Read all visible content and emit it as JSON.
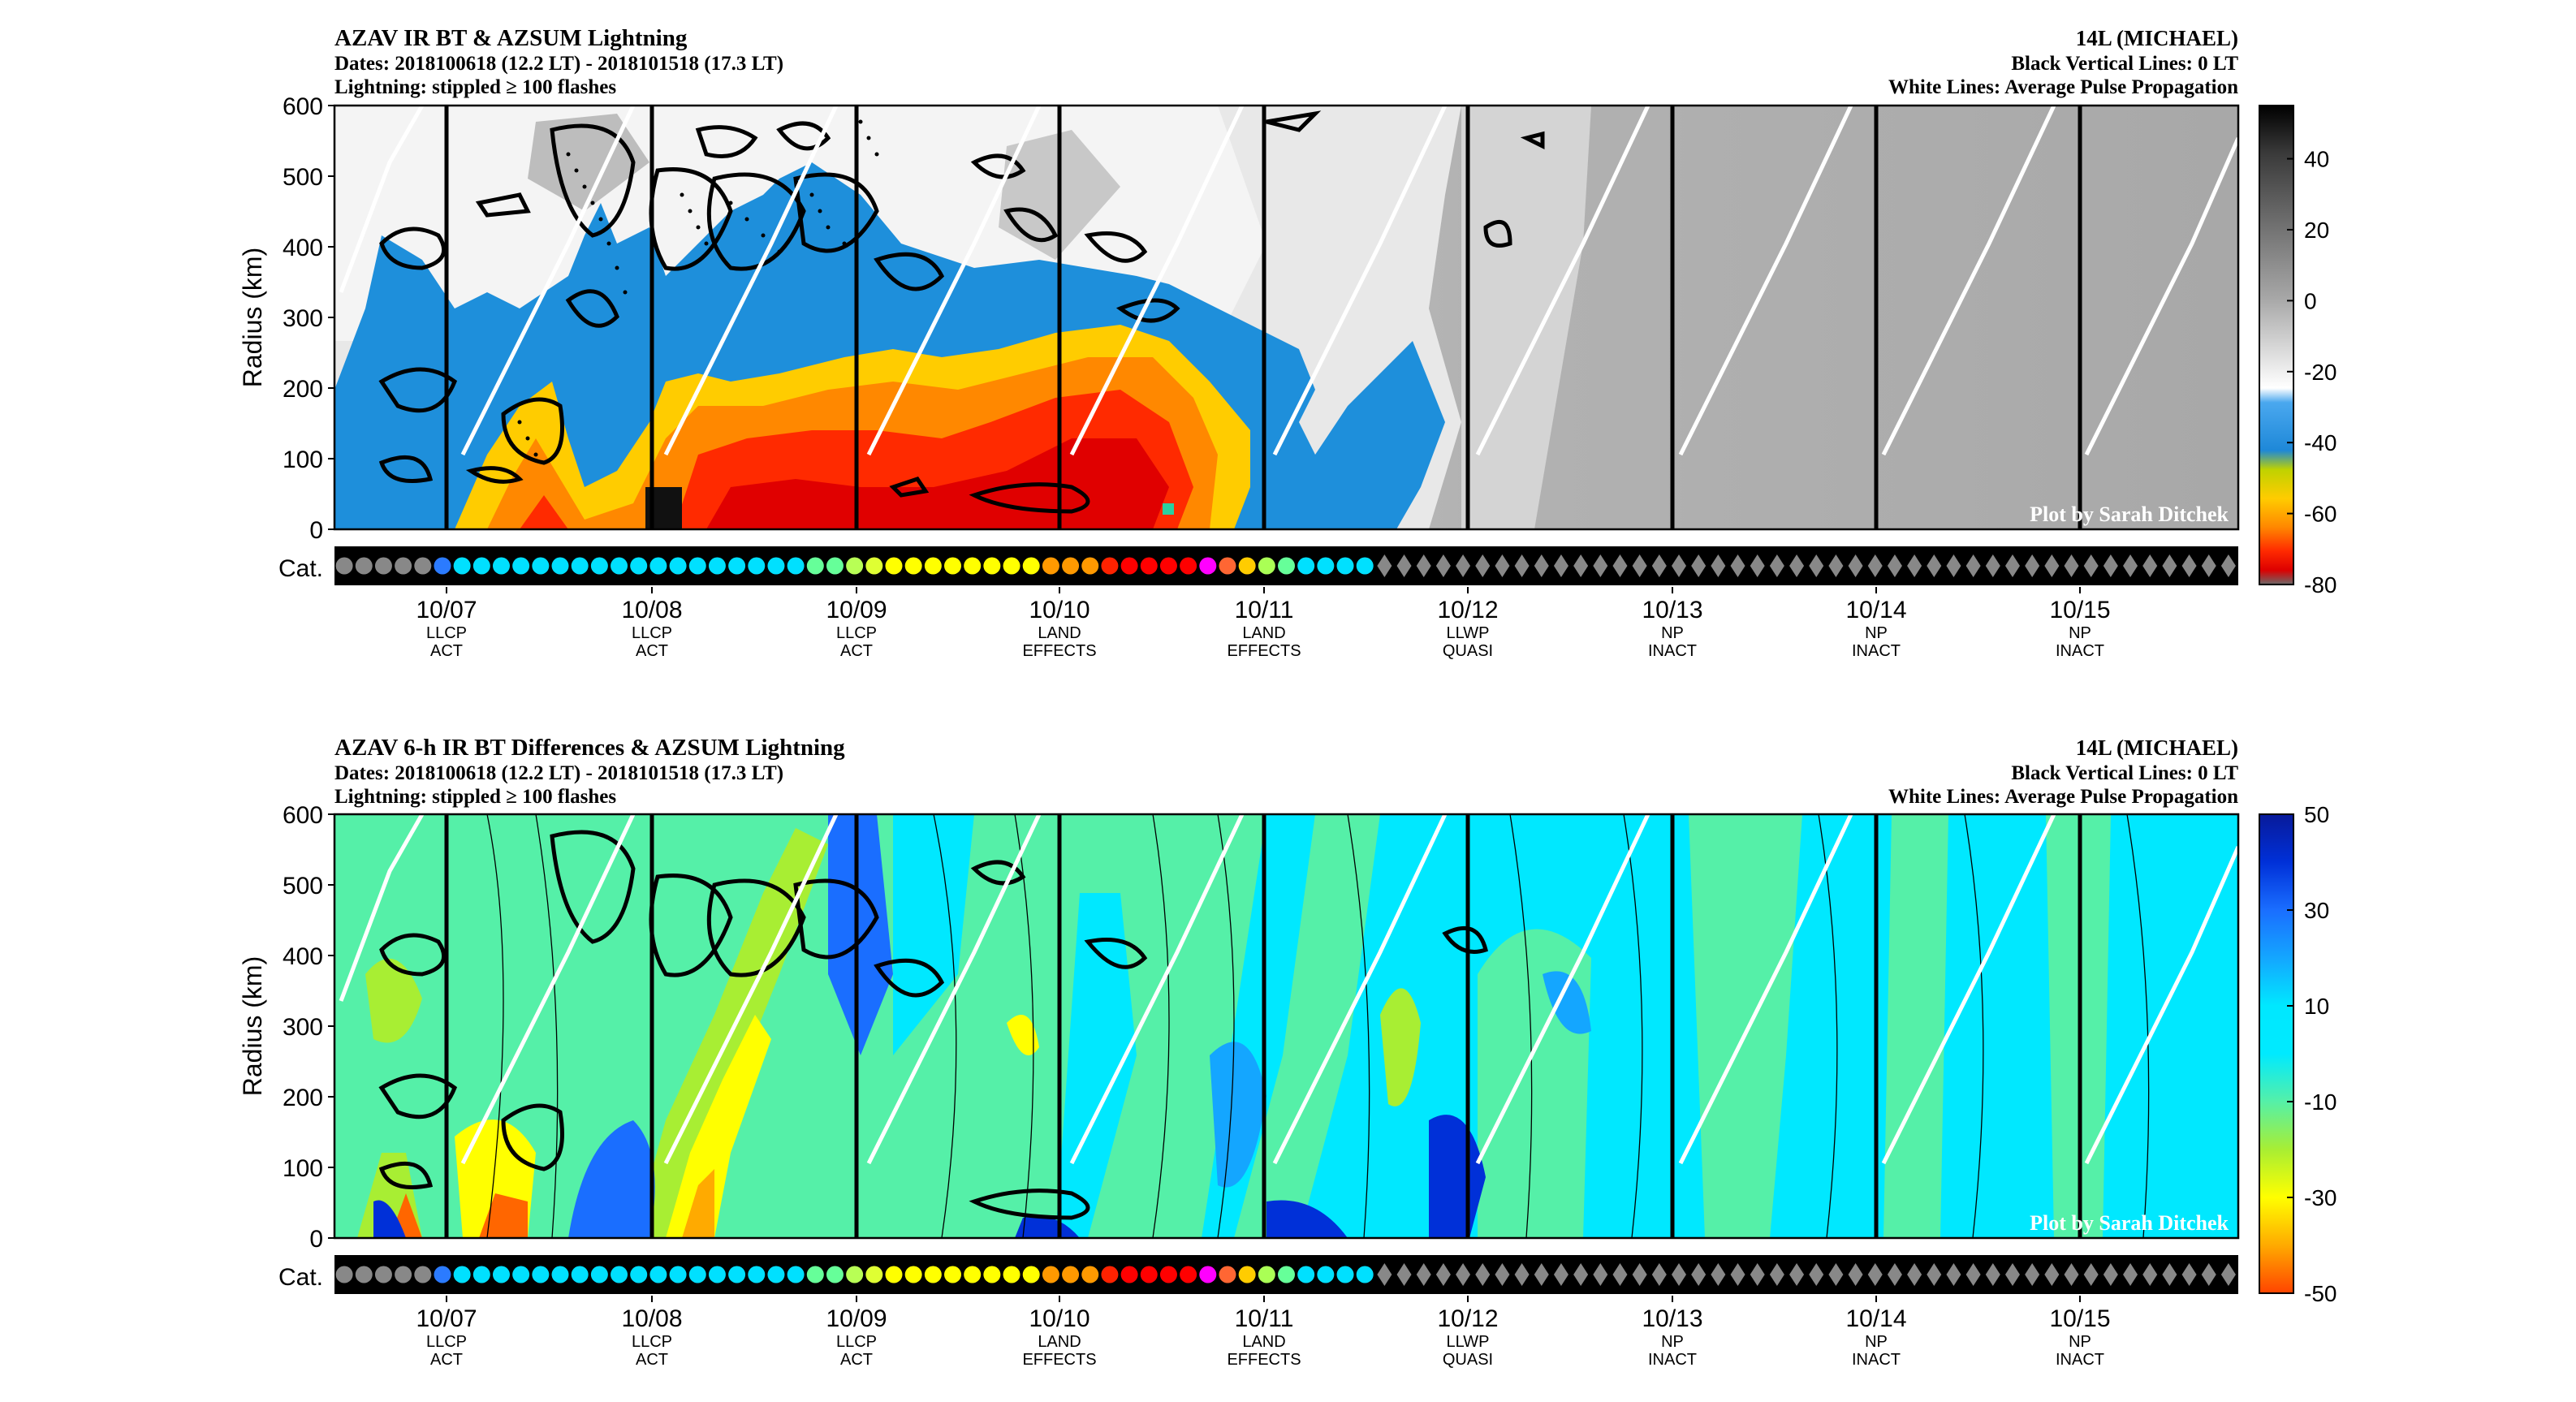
{
  "chart_data": [
    {
      "type": "heatmap",
      "title": "AZAV IR BT & AZSUM Lightning",
      "subtitle": [
        "Dates: 2018100618 (12.2 LT) - 2018101518 (17.3 LT)",
        "Lightning: stippled ≥ 100 flashes"
      ],
      "right_header": [
        "14L (MICHAEL)",
        "Black Vertical Lines: 0 LT",
        "White Lines: Average Pulse Propagation"
      ],
      "ylabel": "Radius (km)",
      "yticks": [
        0,
        100,
        200,
        300,
        400,
        500,
        600
      ],
      "ylim": [
        0,
        600
      ],
      "xtick_dates": [
        "10/07",
        "10/08",
        "10/09",
        "10/10",
        "10/11",
        "10/12",
        "10/13",
        "10/14",
        "10/15"
      ],
      "xtick_stages": [
        [
          "LLCP",
          "ACT"
        ],
        [
          "LLCP",
          "ACT"
        ],
        [
          "LLCP",
          "ACT"
        ],
        [
          "LAND",
          "EFFECTS"
        ],
        [
          "LAND",
          "EFFECTS"
        ],
        [
          "LLWP",
          "QUASI"
        ],
        [
          "NP",
          "INACT"
        ],
        [
          "NP",
          "INACT"
        ],
        [
          "NP",
          "INACT"
        ]
      ],
      "cat_label": "Cat.",
      "colorbar_ticks": [
        40,
        20,
        0,
        -20,
        -40,
        -60,
        -80
      ],
      "colorbar_range": [
        -80,
        55
      ],
      "credit": "Plot by Sarah Ditchek"
    },
    {
      "type": "heatmap",
      "title": "AZAV 6-h IR BT Differences & AZSUM Lightning",
      "subtitle": [
        "Dates: 2018100618 (12.2 LT) - 2018101518 (17.3 LT)",
        "Lightning: stippled ≥ 100 flashes"
      ],
      "right_header": [
        "14L (MICHAEL)",
        "Black Vertical Lines: 0 LT",
        "White Lines: Average Pulse Propagation"
      ],
      "ylabel": "Radius (km)",
      "yticks": [
        0,
        100,
        200,
        300,
        400,
        500,
        600
      ],
      "ylim": [
        0,
        600
      ],
      "xtick_dates": [
        "10/07",
        "10/08",
        "10/09",
        "10/10",
        "10/11",
        "10/12",
        "10/13",
        "10/14",
        "10/15"
      ],
      "xtick_stages": [
        [
          "LLCP",
          "ACT"
        ],
        [
          "LLCP",
          "ACT"
        ],
        [
          "LLCP",
          "ACT"
        ],
        [
          "LAND",
          "EFFECTS"
        ],
        [
          "LAND",
          "EFFECTS"
        ],
        [
          "LLWP",
          "QUASI"
        ],
        [
          "NP",
          "INACT"
        ],
        [
          "NP",
          "INACT"
        ],
        [
          "NP",
          "INACT"
        ]
      ],
      "cat_label": "Cat.",
      "colorbar_ticks": [
        50,
        30,
        10,
        -10,
        -30,
        -50
      ],
      "colorbar_range": [
        -50,
        50
      ],
      "credit": "Plot by Sarah Ditchek"
    }
  ],
  "categories": {
    "symbols": [
      "c",
      "c",
      "c",
      "c",
      "c",
      "c",
      "c",
      "c",
      "c",
      "c",
      "c",
      "c",
      "c",
      "c",
      "c",
      "c",
      "c",
      "c",
      "c",
      "c",
      "c",
      "c",
      "c",
      "c",
      "c",
      "c",
      "c",
      "c",
      "c",
      "c",
      "c",
      "c",
      "c",
      "c",
      "c",
      "c",
      "c",
      "c",
      "c",
      "c",
      "c",
      "c",
      "c",
      "c",
      "c",
      "c",
      "c",
      "c",
      "c",
      "c",
      "c",
      "c",
      "c",
      "d",
      "d",
      "d",
      "d",
      "d",
      "d",
      "d",
      "d",
      "d",
      "d",
      "d",
      "d",
      "d",
      "d",
      "d",
      "d",
      "d",
      "d",
      "d",
      "d",
      "d",
      "d",
      "d",
      "d",
      "d",
      "d",
      "d",
      "d",
      "d",
      "d",
      "d",
      "d",
      "d",
      "d",
      "d",
      "d",
      "d",
      "d",
      "d",
      "d",
      "d",
      "d",
      "d",
      "d"
    ],
    "colors": [
      "#888888",
      "#888888",
      "#888888",
      "#888888",
      "#888888",
      "#2b7bff",
      "#00e0ff",
      "#00e0ff",
      "#00e0ff",
      "#00e0ff",
      "#00e0ff",
      "#00e0ff",
      "#00e0ff",
      "#00e0ff",
      "#00e0ff",
      "#00e0ff",
      "#00e0ff",
      "#00e0ff",
      "#00e0ff",
      "#00e0ff",
      "#00e0ff",
      "#00e0ff",
      "#00e0ff",
      "#00e0ff",
      "#66ff99",
      "#66ff99",
      "#b8ff55",
      "#dfff33",
      "#ffff00",
      "#ffff00",
      "#ffff00",
      "#ffff00",
      "#ffff00",
      "#ffff00",
      "#ffff00",
      "#ffff00",
      "#ff9900",
      "#ff9900",
      "#ff9900",
      "#ff2200",
      "#ff0000",
      "#ff0000",
      "#ff0000",
      "#ff0000",
      "#ff00ff",
      "#ff6633",
      "#ffcc00",
      "#aaff55",
      "#66ff99",
      "#00e0ff",
      "#00e0ff",
      "#00e0ff",
      "#00e0ff",
      "#888888",
      "#888888",
      "#888888",
      "#888888",
      "#888888",
      "#888888",
      "#888888",
      "#888888",
      "#888888",
      "#888888",
      "#888888",
      "#888888",
      "#888888",
      "#888888",
      "#888888",
      "#888888",
      "#888888",
      "#888888",
      "#888888",
      "#888888",
      "#888888",
      "#888888",
      "#888888",
      "#888888",
      "#888888",
      "#888888",
      "#888888",
      "#888888",
      "#888888",
      "#888888",
      "#888888",
      "#888888",
      "#888888",
      "#888888",
      "#888888",
      "#888888",
      "#888888",
      "#888888",
      "#888888",
      "#888888",
      "#888888",
      "#888888",
      "#888888",
      "#888888"
    ]
  },
  "colors": {
    "ir_scale": [
      "#000000",
      "#3a3a3a",
      "#707070",
      "#a0a0a0",
      "#cfcfcf",
      "#f5f5f5",
      "#2f8fe0",
      "#1e90d8",
      "#c8d400",
      "#ffcc00",
      "#ff8800",
      "#ff3300",
      "#e00000",
      "#666666"
    ],
    "diff_scale": [
      "#0a1a9a",
      "#0033dd",
      "#1a6eff",
      "#1aa8ff",
      "#00e8ff",
      "#55f5b0",
      "#99ee44",
      "#ffff00",
      "#ffbb00",
      "#ff7700",
      "#ff4400"
    ]
  }
}
